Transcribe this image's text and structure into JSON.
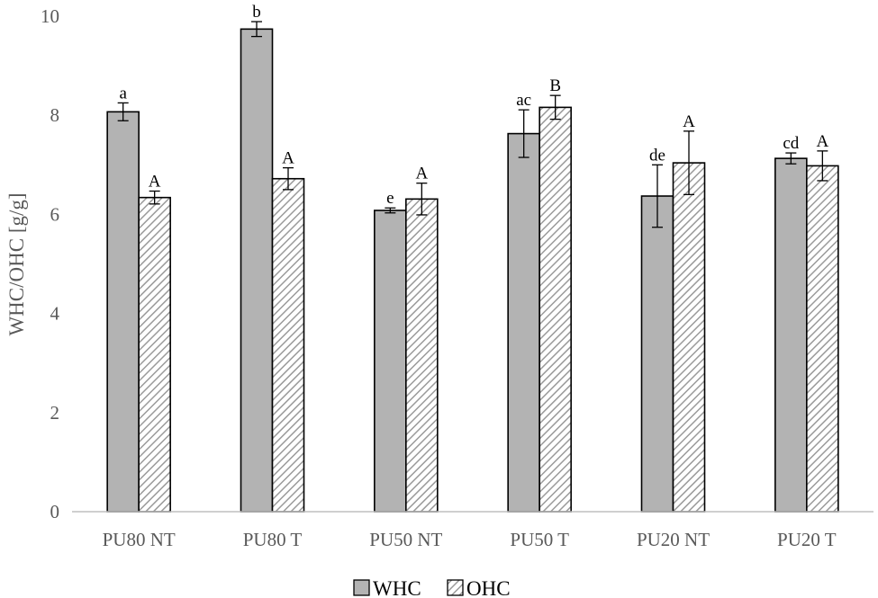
{
  "chart_data": {
    "type": "bar",
    "ylabel": "WHC/OHC [g/g]",
    "ylim": [
      0,
      10
    ],
    "yticks": [
      0,
      2,
      4,
      6,
      8,
      10
    ],
    "grid": false,
    "legend_position": "bottom",
    "categories": [
      "PU80 NT",
      "PU80 T",
      "PU50 NT",
      "PU50 T",
      "PU20 NT",
      "PU20 T"
    ],
    "series": [
      {
        "name": "WHC",
        "color": "#b3b3b3",
        "pattern": "solid",
        "values": [
          8.07,
          9.74,
          6.08,
          7.63,
          6.37,
          7.13
        ],
        "errors": [
          0.18,
          0.15,
          0.05,
          0.48,
          0.63,
          0.11
        ],
        "labels": [
          "a",
          "b",
          "e",
          "ac",
          "de",
          "cd"
        ]
      },
      {
        "name": "OHC",
        "color": "#d9d9d9",
        "pattern": "hatched",
        "values": [
          6.34,
          6.72,
          6.31,
          8.16,
          7.04,
          6.98
        ],
        "errors": [
          0.13,
          0.22,
          0.32,
          0.24,
          0.64,
          0.3
        ],
        "labels": [
          "A",
          "A",
          "A",
          "B",
          "A",
          "A"
        ]
      }
    ]
  }
}
